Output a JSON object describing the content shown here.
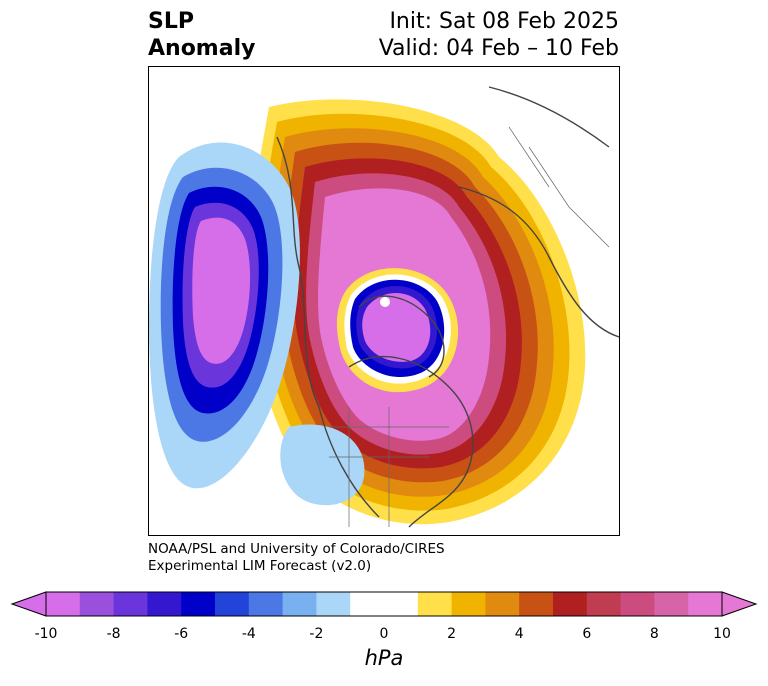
{
  "header": {
    "title_line1": "SLP",
    "title_line2": "Anomaly",
    "init": "Init: Sat 08 Feb 2025",
    "valid": "Valid: 04 Feb – 10 Feb"
  },
  "credit": {
    "line1": "NOAA/PSL and University of Colorado/CIRES",
    "line2": "Experimental LIM Forecast (v2.0)"
  },
  "colorbar": {
    "unit_label": "hPa",
    "ticks": [
      "-10",
      "-8",
      "-6",
      "-4",
      "-2",
      "0",
      "2",
      "4",
      "6",
      "8",
      "10"
    ],
    "colors": [
      "#d56ee8",
      "#9a50dc",
      "#6a36dc",
      "#3318d0",
      "#0000c8",
      "#2244d8",
      "#4c78e6",
      "#78b0f0",
      "#aad6f8",
      "#ffffff",
      "#ffffff",
      "#ffe04a",
      "#f0b400",
      "#e08a10",
      "#c85214",
      "#b02020",
      "#c03c50",
      "#cc4c80",
      "#d864a8",
      "#e478d4"
    ],
    "extend": "both"
  },
  "map": {
    "projection": "north-polar-stereographic",
    "variable": "sea-level-pressure-anomaly"
  }
}
